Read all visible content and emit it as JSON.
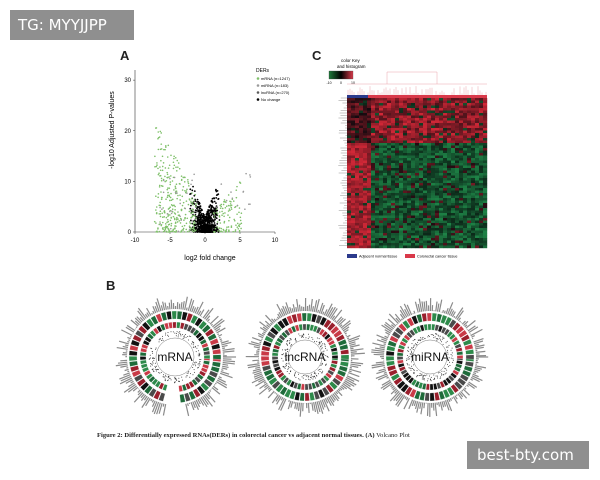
{
  "badges": {
    "top_left": "TG: MYYJJPP",
    "bottom_right": "best-bty.com"
  },
  "panels": {
    "a": {
      "letter": "A"
    },
    "b": {
      "letter": "B"
    },
    "c": {
      "letter": "C"
    }
  },
  "chart_data": {
    "type": "scatter",
    "xlabel": "log2 fold change",
    "ylabel": "-log10 Adjusted P-values",
    "xlim": [
      -10,
      10
    ],
    "ylim": [
      0,
      32
    ],
    "xticks": [
      -10,
      -5,
      0,
      5,
      10
    ],
    "yticks": [
      0,
      10,
      20,
      30
    ],
    "legend_title": "DERs",
    "legend_position": "top-right",
    "series": [
      {
        "name": "mRNA",
        "count_label": "(n=1247)",
        "color": "#7fc06a"
      },
      {
        "name": "miRNA",
        "count_label": "(n=183)",
        "color": "#9a9a9a"
      },
      {
        "name": "lncRNA",
        "count_label": "(n=270)",
        "color": "#5a5a5a"
      },
      {
        "name": "No change",
        "count_label": "",
        "color": "#000000"
      }
    ]
  },
  "heatmap": {
    "key_title_line1": "color Key",
    "key_title_line2": "and histogram",
    "key_ticks": [
      "-10",
      "0",
      "10"
    ],
    "legend": [
      {
        "label": "Adjacent normal tissue",
        "color": "#2b3a8c"
      },
      {
        "label": "Colorectal cancer tissue",
        "color": "#d9394a"
      }
    ]
  },
  "circos": {
    "labels": [
      "mRNA",
      "lncRNA",
      "miRNA"
    ]
  },
  "caption": {
    "bold": "Figure 2: Differentially expressed RNAs(DERs) in colorectal cancer vs adjacent normal tissues. (A)",
    "normal": "Volcano Plot"
  }
}
